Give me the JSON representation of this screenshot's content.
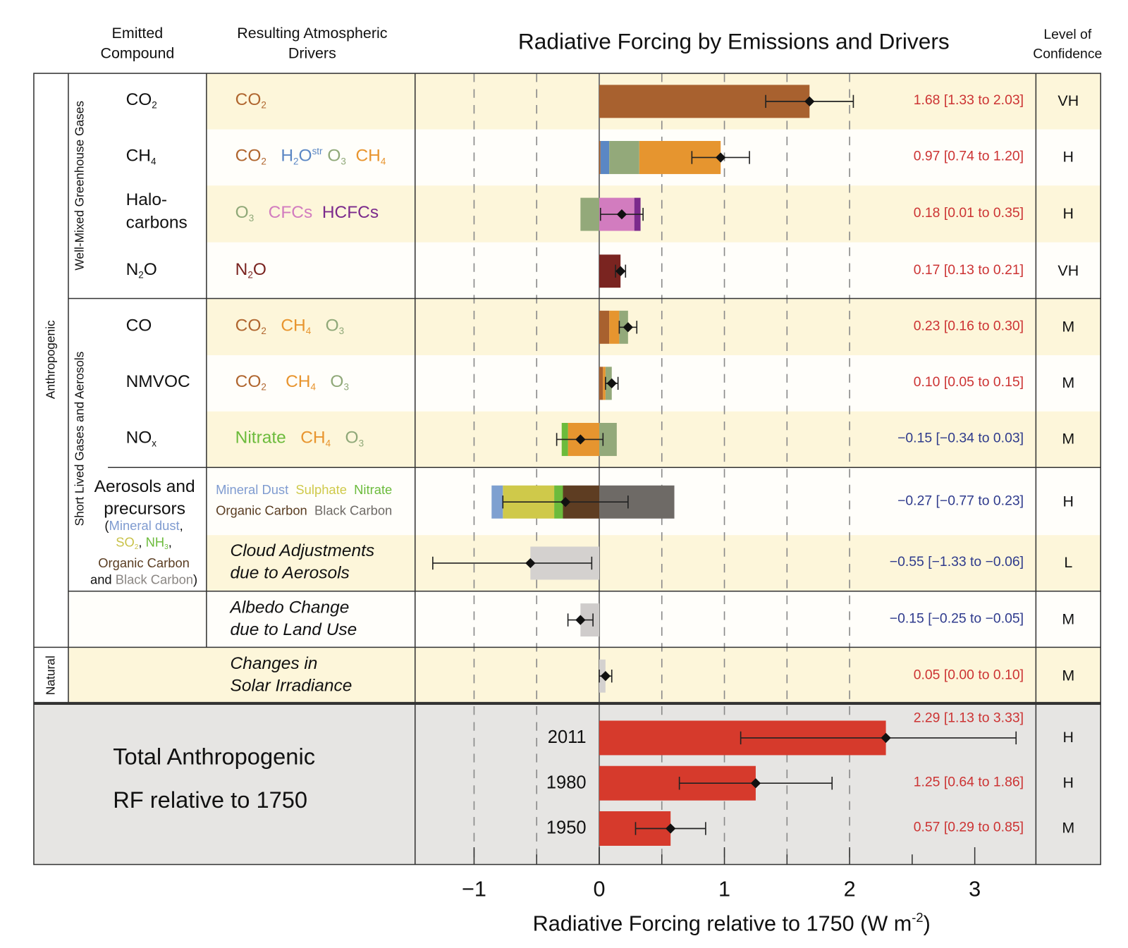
{
  "header": {
    "emitted": "Emitted\nCompound",
    "drivers": "Resulting Atmospheric\nDrivers",
    "title": "Radiative Forcing by Emissions and Drivers",
    "confidence": "Level of\nConfidence"
  },
  "groups": {
    "anthropogenic": "Anthropogenic",
    "natural": "Natural",
    "wmghg": "Well-Mixed Greenhouse Gases",
    "slcf": "Short Lived Gases and Aerosols"
  },
  "aerosol_compound": {
    "line1": "Aerosols and",
    "line2": "precursors",
    "details": [
      [
        {
          "t": "(",
          "c": "#111111"
        },
        {
          "t": "Mineral dust",
          "c": "#7f9bd0"
        },
        {
          "t": ",",
          "c": "#111111"
        }
      ],
      [
        {
          "t": "SO",
          "sub": "2",
          "c": "#c9c24a"
        },
        {
          "t": ", ",
          "c": "#111111"
        },
        {
          "t": "NH",
          "sub": "3",
          "c": "#6cbb3c"
        },
        {
          "t": ",",
          "c": "#111111"
        }
      ],
      [
        {
          "t": "Organic Carbon",
          "c": "#5a3d22"
        }
      ],
      [
        {
          "t": "and ",
          "c": "#111111"
        },
        {
          "t": "Black Carbon",
          "c": "#8a8683"
        },
        {
          "t": ")",
          "c": "#111111"
        }
      ]
    ]
  },
  "total": {
    "line1": "Total Anthropogenic",
    "line2": "RF relative to 1750"
  },
  "chart_data": {
    "type": "bar",
    "subtype": "horizontal stacked bar with error bars",
    "title": "Radiative Forcing by Emissions and Drivers",
    "xlabel": "Radiative Forcing relative to 1750 (W m",
    "xlabel_sup": "-2",
    "xlabel_close": ")",
    "xlim": [
      -1.47,
      3.5
    ],
    "xticks": [
      -1,
      0,
      1,
      2,
      3
    ],
    "xtick_labels": [
      "−1",
      "0",
      "1",
      "2",
      "3"
    ],
    "grid": "dashed vertical lines every 0.5",
    "colors": {
      "positive_label": "#cc3333",
      "negative_label": "#2e3a8c",
      "total_bar": "#d63a2c"
    },
    "rows": [
      {
        "compound": [
          {
            "t": "CO",
            "sub": "2"
          }
        ],
        "drivers": [
          [
            {
              "t": "CO",
              "sub": "2",
              "c": "#b0662f"
            }
          ]
        ],
        "components": [
          {
            "name": "CO2",
            "value": 1.68,
            "color": "#a8612f"
          }
        ],
        "best": 1.68,
        "low": 1.33,
        "high": 2.03,
        "label": "1.68 [1.33 to 2.03]",
        "confidence": "VH"
      },
      {
        "compound": [
          {
            "t": "CH",
            "sub": "4"
          }
        ],
        "drivers": [
          [
            {
              "t": "CO",
              "sub": "2",
              "c": "#b0662f"
            },
            {
              "t": "   "
            },
            {
              "t": "H",
              "sub": "2",
              "c": "#5b87c4"
            },
            {
              "t": "O",
              "sup": "str",
              "c": "#5b87c4"
            },
            {
              "t": " "
            },
            {
              "t": "O",
              "sub": "3",
              "c": "#8fa878"
            },
            {
              "t": "  "
            },
            {
              "t": "CH",
              "sub": "4",
              "c": "#e8952f"
            }
          ]
        ],
        "components": [
          {
            "name": "CO2",
            "value": 0.01,
            "color": "#a8612f"
          },
          {
            "name": "H2Ostr",
            "value": 0.07,
            "color": "#5b87c4"
          },
          {
            "name": "O3",
            "value": 0.24,
            "color": "#93a97a"
          },
          {
            "name": "CH4",
            "value": 0.65,
            "color": "#e6952f"
          }
        ],
        "best": 0.97,
        "low": 0.74,
        "high": 1.2,
        "label": "0.97 [0.74 to 1.20]",
        "confidence": "H"
      },
      {
        "compound": [
          {
            "t": "Halo-"
          }
        ],
        "compound2": [
          {
            "t": "carbons"
          }
        ],
        "drivers": [
          [
            {
              "t": "O",
              "sub": "3",
              "c": "#8fa878"
            },
            {
              "t": "   "
            },
            {
              "t": "CFCs",
              "c": "#d27cbf"
            },
            {
              "t": "  "
            },
            {
              "t": "HCFCs",
              "c": "#7b2a8c"
            }
          ]
        ],
        "components": [
          {
            "name": "O3",
            "value": -0.15,
            "color": "#93a97a"
          },
          {
            "name": "CFCs",
            "value": 0.28,
            "color": "#d27cbf"
          },
          {
            "name": "HCFCs",
            "value": 0.05,
            "color": "#7b2a8c"
          }
        ],
        "best": 0.18,
        "low": 0.01,
        "high": 0.35,
        "label": "0.18 [0.01 to 0.35]",
        "confidence": "H"
      },
      {
        "compound": [
          {
            "t": "N"
          },
          {
            "t": "O",
            "presub": "2"
          }
        ],
        "drivers": [
          [
            {
              "t": "N",
              "c": "#7a2420"
            },
            {
              "t": "O",
              "presub": "2",
              "c": "#7a2420"
            }
          ]
        ],
        "components": [
          {
            "name": "N2O",
            "value": 0.17,
            "color": "#7a2420"
          }
        ],
        "best": 0.17,
        "low": 0.13,
        "high": 0.21,
        "label": "0.17 [0.13 to 0.21]",
        "confidence": "VH"
      },
      {
        "compound": [
          {
            "t": "CO"
          }
        ],
        "drivers": [
          [
            {
              "t": "CO",
              "sub": "2",
              "c": "#b0662f"
            },
            {
              "t": "   "
            },
            {
              "t": "CH",
              "sub": "4",
              "c": "#e8952f"
            },
            {
              "t": "   "
            },
            {
              "t": "O",
              "sub": "3",
              "c": "#8fa878"
            }
          ]
        ],
        "components": [
          {
            "name": "CO2",
            "value": 0.08,
            "color": "#a8612f"
          },
          {
            "name": "CH4",
            "value": 0.08,
            "color": "#e6952f"
          },
          {
            "name": "O3",
            "value": 0.07,
            "color": "#93a97a"
          }
        ],
        "best": 0.23,
        "low": 0.16,
        "high": 0.3,
        "label": "0.23 [0.16 to 0.30]",
        "confidence": "M"
      },
      {
        "compound": [
          {
            "t": "NMVOC"
          }
        ],
        "drivers": [
          [
            {
              "t": "CO",
              "sub": "2",
              "c": "#b0662f"
            },
            {
              "t": "    "
            },
            {
              "t": "CH",
              "sub": "4",
              "c": "#e8952f"
            },
            {
              "t": "   "
            },
            {
              "t": "O",
              "sub": "3",
              "c": "#8fa878"
            }
          ]
        ],
        "components": [
          {
            "name": "CO2",
            "value": 0.03,
            "color": "#a8612f"
          },
          {
            "name": "CH4",
            "value": 0.02,
            "color": "#e6952f"
          },
          {
            "name": "O3",
            "value": 0.05,
            "color": "#93a97a"
          }
        ],
        "best": 0.1,
        "low": 0.05,
        "high": 0.15,
        "label": "0.10 [0.05 to 0.15]",
        "confidence": "M"
      },
      {
        "compound": [
          {
            "t": "NO",
            "sub": "x"
          }
        ],
        "drivers": [
          [
            {
              "t": "Nitrate",
              "c": "#6cbb3c"
            },
            {
              "t": "   "
            },
            {
              "t": "CH",
              "sub": "4",
              "c": "#e8952f"
            },
            {
              "t": "   "
            },
            {
              "t": "O",
              "sub": "3",
              "c": "#8fa878"
            }
          ]
        ],
        "components": [
          {
            "name": "CH4",
            "value": -0.25,
            "color": "#e6952f"
          },
          {
            "name": "Nitrate",
            "value": -0.05,
            "color": "#6cbb3c"
          },
          {
            "name": "O3",
            "value": 0.14,
            "color": "#93a97a"
          }
        ],
        "best": -0.15,
        "low": -0.34,
        "high": 0.03,
        "label": "−0.15 [−0.34 to 0.03]",
        "confidence": "M"
      },
      {
        "compound": [],
        "drivers": [
          [
            {
              "t": "Mineral Dust",
              "c": "#7f9bd0"
            },
            {
              "t": "  "
            },
            {
              "t": "Sulphate",
              "c": "#cfc94a"
            },
            {
              "t": "  "
            },
            {
              "t": "Nitrate",
              "c": "#6cbb3c"
            }
          ],
          [
            {
              "t": "Organic Carbon",
              "c": "#5a3d22"
            },
            {
              "t": "  "
            },
            {
              "t": "Black Carbon",
              "c": "#6e6a66"
            }
          ]
        ],
        "components": [
          {
            "name": "Organic Carbon",
            "value": -0.29,
            "color": "#5e3d22"
          },
          {
            "name": "Nitrate",
            "value": -0.07,
            "color": "#6cbb3c"
          },
          {
            "name": "Sulphate",
            "value": -0.41,
            "color": "#cfc94a"
          },
          {
            "name": "Mineral Dust",
            "value": -0.09,
            "color": "#7ea0d0"
          },
          {
            "name": "Black Carbon",
            "value": 0.6,
            "color": "#6e6a66"
          }
        ],
        "best": -0.27,
        "low": -0.77,
        "high": 0.23,
        "label": "−0.27 [−0.77 to 0.23]",
        "confidence": "H"
      },
      {
        "compound": [],
        "drivers_italic": [
          "Cloud Adjustments",
          "due to Aerosols"
        ],
        "components": [
          {
            "name": "Cloud Adjustments",
            "value": -0.55,
            "color": "#d4d1cf"
          }
        ],
        "best": -0.55,
        "low": -1.33,
        "high": -0.06,
        "label": "−0.55 [−1.33 to −0.06]",
        "confidence": "L"
      },
      {
        "compound": [],
        "drivers_italic": [
          "Albedo Change",
          "due to Land Use"
        ],
        "components": [
          {
            "name": "Albedo",
            "value": -0.15,
            "color": "#cfcccb"
          }
        ],
        "best": -0.15,
        "low": -0.25,
        "high": -0.05,
        "label": "−0.15 [−0.25 to −0.05]",
        "confidence": "M"
      },
      {
        "compound": [],
        "drivers_italic": [
          "Changes in",
          "Solar Irradiance"
        ],
        "components": [
          {
            "name": "Solar",
            "value": 0.05,
            "color": "#d4d1cf"
          }
        ],
        "best": 0.05,
        "low": 0.0,
        "high": 0.1,
        "label": "0.05 [0.00 to 0.10]",
        "confidence": "M"
      }
    ],
    "totals": [
      {
        "year": "2011",
        "best": 2.29,
        "low": 1.13,
        "high": 3.33,
        "label": "2.29 [1.13 to 3.33]",
        "confidence": "H"
      },
      {
        "year": "1980",
        "best": 1.25,
        "low": 0.64,
        "high": 1.86,
        "label": "1.25 [0.64 to 1.86]",
        "confidence": "H"
      },
      {
        "year": "1950",
        "best": 0.57,
        "low": 0.29,
        "high": 0.85,
        "label": "0.57 [0.29 to 0.85]",
        "confidence": "M"
      }
    ]
  }
}
